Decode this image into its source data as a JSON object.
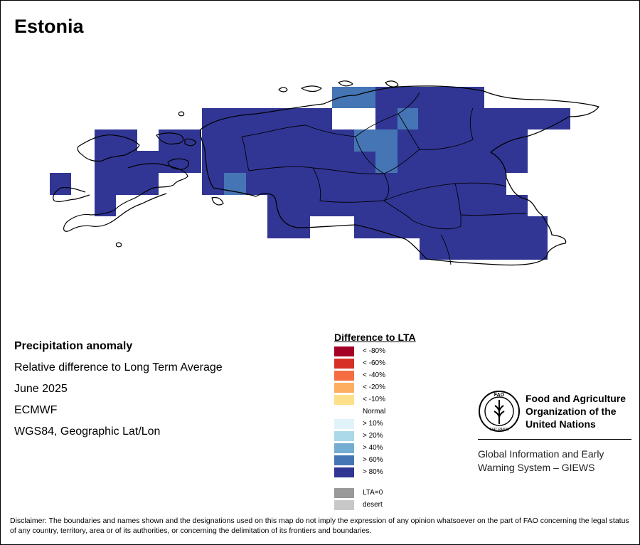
{
  "title": "Estonia",
  "info": {
    "heading": "Precipitation anomaly",
    "subtitle": "Relative difference to Long Term Average",
    "period": "June 2025",
    "source": "ECMWF",
    "projection": "WGS84, Geographic Lat/Lon"
  },
  "legend": {
    "title": "Difference to LTA",
    "items": [
      {
        "label": "< -80%",
        "color": "#a50026"
      },
      {
        "label": "< -60%",
        "color": "#d73027"
      },
      {
        "label": "< -40%",
        "color": "#f46d43"
      },
      {
        "label": "< -20%",
        "color": "#fdae61"
      },
      {
        "label": "< -10%",
        "color": "#fee08b"
      },
      {
        "label": "Normal",
        "color": "#ffffff"
      },
      {
        "label": "> 10%",
        "color": "#e0f3f8"
      },
      {
        "label": "> 20%",
        "color": "#abd9e9"
      },
      {
        "label": "> 40%",
        "color": "#74add1"
      },
      {
        "label": "> 60%",
        "color": "#4575b4"
      },
      {
        "label": "> 80%",
        "color": "#313695"
      }
    ],
    "extra": [
      {
        "label": "LTA=0",
        "color": "#999999"
      },
      {
        "label": "desert",
        "color": "#c8c8c8"
      }
    ]
  },
  "organization": {
    "logo_text": "FAO",
    "logo_motto": "FIAT PANIS",
    "name_lines": [
      "Food and Agriculture",
      "Organization of the",
      "United Nations"
    ],
    "system_lines": [
      "Global Information and Early",
      "Warning System – GIEWS"
    ]
  },
  "disclaimer": "Disclaimer: The boundaries and names shown and the designations used on this map do not imply the expression of any opinion whatsoever on the part of FAO concerning the legal status of any country, territory, area or of its authorities, or concerning the delimitation of its frontiers and boundaries."
}
